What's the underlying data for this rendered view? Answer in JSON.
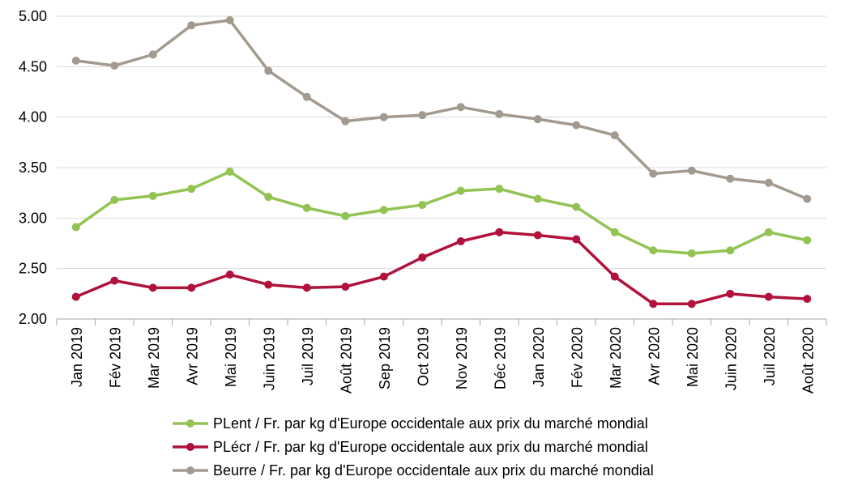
{
  "chart_data": {
    "type": "line",
    "title": "",
    "xlabel": "",
    "ylabel": "",
    "ylim": [
      2.0,
      5.0
    ],
    "yticks": [
      "2.00",
      "2.50",
      "3.00",
      "3.50",
      "4.00",
      "4.50",
      "5.00"
    ],
    "grid": true,
    "legend_position": "bottom",
    "categories": [
      "Jan 2019",
      "Fév 2019",
      "Mar 2019",
      "Avr 2019",
      "Mai 2019",
      "Juin 2019",
      "Juil 2019",
      "Août 2019",
      "Sep 2019",
      "Oct 2019",
      "Nov 2019",
      "Déc 2019",
      "Jan 2020",
      "Fév 2020",
      "Mar 2020",
      "Avr 2020",
      "Mai 2020",
      "Juin 2020",
      "Juil 2020",
      "Août 2020"
    ],
    "series": [
      {
        "name": "PLent / Fr. par kg d'Europe occidentale aux prix du marché mondial",
        "color": "#92c353",
        "values": [
          2.91,
          3.18,
          3.22,
          3.29,
          3.46,
          3.21,
          3.1,
          3.02,
          3.08,
          3.13,
          3.27,
          3.29,
          3.19,
          3.11,
          2.86,
          2.68,
          2.65,
          2.68,
          2.86,
          2.78
        ]
      },
      {
        "name": "PLécr / Fr. par kg d'Europe occidentale aux prix du marché mondial",
        "color": "#b0123c",
        "values": [
          2.22,
          2.38,
          2.31,
          2.31,
          2.44,
          2.34,
          2.31,
          2.32,
          2.42,
          2.61,
          2.77,
          2.86,
          2.83,
          2.79,
          2.42,
          2.15,
          2.15,
          2.25,
          2.22,
          2.2
        ]
      },
      {
        "name": "Beurre / Fr. par kg d'Europe occidentale aux prix du marché mondial",
        "color": "#a39a8f",
        "values": [
          4.56,
          4.51,
          4.62,
          4.91,
          4.96,
          4.46,
          4.2,
          3.96,
          4.0,
          4.02,
          4.1,
          4.03,
          3.98,
          3.92,
          3.82,
          3.44,
          3.47,
          3.39,
          3.35,
          3.19
        ]
      }
    ]
  }
}
